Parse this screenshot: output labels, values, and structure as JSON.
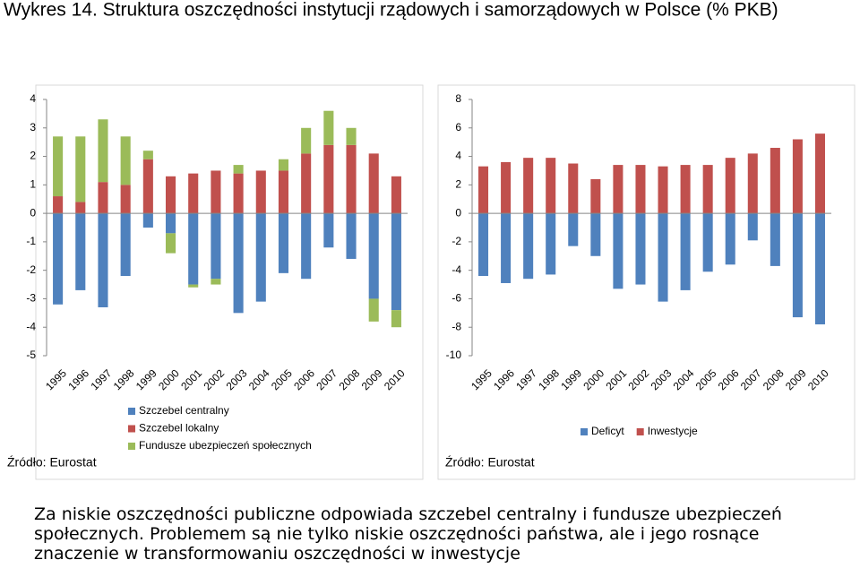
{
  "title": "Wykres 14. Struktura oszczędności instytucji rządowych i samorządowych w Polsce (% PKB)",
  "caption": "Za niskie oszczędności publiczne odpowiada szczebel centralny i fundusze ubezpieczeń społecznych. Problemem są nie tylko niskie oszczędności państwa, ale i jego rosnące znaczenie w transformowaniu oszczędności w inwestycje",
  "chart_data": [
    {
      "type": "stacked_bar",
      "source": "Źródło: Eurostat",
      "categories": [
        "1995",
        "1996",
        "1997",
        "1998",
        "1999",
        "2000",
        "2001",
        "2002",
        "2003",
        "2004",
        "2005",
        "2006",
        "2007",
        "2008",
        "2009",
        "2010"
      ],
      "series": [
        {
          "name": "Szczebel centralny",
          "color": "#4f81bd",
          "values": [
            -3.2,
            -2.7,
            -3.3,
            -2.2,
            -0.5,
            -0.7,
            -2.5,
            -2.3,
            -3.5,
            -3.1,
            -2.1,
            -2.3,
            -1.2,
            -1.6,
            -3.0,
            -3.4
          ]
        },
        {
          "name": "Szczebel lokalny",
          "color": "#c0504d",
          "values": [
            0.6,
            0.4,
            1.1,
            1.0,
            1.9,
            1.3,
            1.4,
            1.5,
            1.4,
            1.5,
            1.5,
            2.1,
            2.4,
            2.4,
            2.1,
            1.3
          ]
        },
        {
          "name": "Fundusze ubezpieczeń społecznych",
          "color": "#9bbb59",
          "values": [
            2.1,
            2.3,
            2.2,
            1.7,
            0.3,
            -0.7,
            -0.1,
            -0.2,
            0.3,
            0,
            0.4,
            0.9,
            1.2,
            0.6,
            -0.8,
            -0.6
          ]
        }
      ],
      "ylim": [
        -5,
        4
      ],
      "yticks": [
        4,
        3,
        2,
        1,
        0,
        -1,
        -2,
        -3,
        -4,
        -5
      ]
    },
    {
      "type": "stacked_bar",
      "source": "Źródło: Eurostat",
      "categories": [
        "1995",
        "1996",
        "1997",
        "1998",
        "1999",
        "2000",
        "2001",
        "2002",
        "2003",
        "2004",
        "2005",
        "2006",
        "2007",
        "2008",
        "2009",
        "2010"
      ],
      "series": [
        {
          "name": "Deficyt",
          "color": "#4f81bd",
          "values": [
            -4.4,
            -4.9,
            -4.6,
            -4.3,
            -2.3,
            -3.0,
            -5.3,
            -5.0,
            -6.2,
            -5.4,
            -4.1,
            -3.6,
            -1.9,
            -3.7,
            -7.3,
            -7.8
          ]
        },
        {
          "name": "Inwestycje",
          "color": "#c0504d",
          "values": [
            3.3,
            3.6,
            3.9,
            3.9,
            3.5,
            2.4,
            3.4,
            3.4,
            3.3,
            3.4,
            3.4,
            3.9,
            4.2,
            4.6,
            5.2,
            5.6
          ]
        }
      ],
      "ylim": [
        -10,
        8
      ],
      "yticks": [
        8,
        6,
        4,
        2,
        0,
        -2,
        -4,
        -6,
        -8,
        -10
      ]
    }
  ]
}
